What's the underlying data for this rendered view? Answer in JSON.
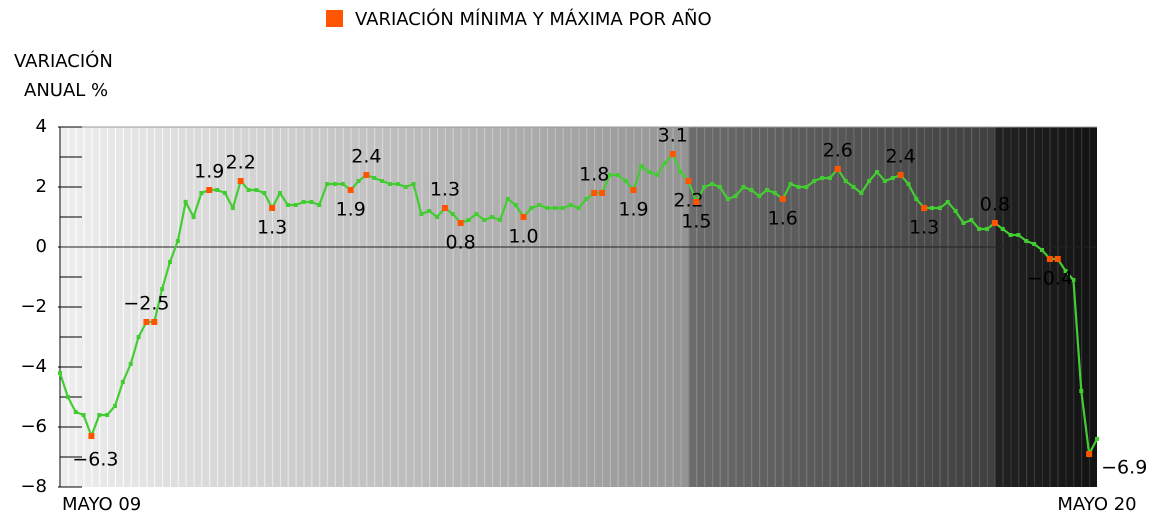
{
  "chart_data": {
    "type": "line",
    "y_label": [
      "VARIACIÓN",
      "ANUAL %"
    ],
    "categories": [
      "MAYO 09",
      null,
      null,
      null,
      null,
      null,
      null,
      null,
      null,
      null,
      null,
      null,
      null,
      null,
      null,
      null,
      null,
      null,
      null,
      null,
      null,
      null,
      null,
      null,
      null,
      null,
      null,
      null,
      null,
      null,
      null,
      null,
      null,
      null,
      null,
      null,
      null,
      null,
      null,
      null,
      null,
      null,
      null,
      null,
      null,
      null,
      null,
      null,
      null,
      null,
      null,
      null,
      null,
      null,
      null,
      null,
      null,
      null,
      null,
      null,
      null,
      null,
      null,
      null,
      null,
      null,
      null,
      null,
      null,
      null,
      null,
      null,
      null,
      null,
      null,
      null,
      null,
      null,
      null,
      null,
      null,
      null,
      null,
      null,
      null,
      null,
      null,
      null,
      null,
      null,
      null,
      null,
      null,
      null,
      null,
      null,
      null,
      null,
      null,
      null,
      null,
      null,
      null,
      null,
      null,
      null,
      null,
      null,
      null,
      null,
      null,
      null,
      null,
      null,
      null,
      null,
      null,
      null,
      null,
      null,
      null,
      null,
      null,
      null,
      null,
      null,
      null,
      null,
      null,
      null,
      null,
      null,
      "MAYO 20"
    ],
    "series": [
      {
        "color": "#44cc33",
        "values": [
          -4.2,
          -5.0,
          -5.5,
          -5.6,
          -6.3,
          -5.6,
          -5.6,
          -5.3,
          -4.5,
          -3.9,
          -3.0,
          -2.5,
          -2.5,
          -1.4,
          -0.5,
          0.2,
          1.5,
          1.0,
          1.8,
          1.9,
          1.9,
          1.8,
          1.3,
          2.2,
          1.9,
          1.9,
          1.8,
          1.3,
          1.8,
          1.4,
          1.4,
          1.5,
          1.5,
          1.4,
          2.1,
          2.1,
          2.1,
          1.9,
          2.2,
          2.4,
          2.3,
          2.2,
          2.1,
          2.1,
          2.0,
          2.1,
          1.1,
          1.2,
          1.0,
          1.3,
          1.1,
          0.8,
          0.9,
          1.1,
          0.9,
          1.0,
          0.9,
          1.6,
          1.4,
          1.0,
          1.3,
          1.4,
          1.3,
          1.3,
          1.3,
          1.4,
          1.3,
          1.6,
          1.8,
          1.8,
          2.4,
          2.4,
          2.2,
          1.9,
          2.7,
          2.5,
          2.4,
          2.8,
          3.1,
          2.5,
          2.2,
          1.5,
          2.0,
          2.1,
          2.0,
          1.6,
          1.7,
          2.0,
          1.9,
          1.7,
          1.9,
          1.8,
          1.6,
          2.1,
          2.0,
          2.0,
          2.2,
          2.3,
          2.3,
          2.6,
          2.2,
          2.0,
          1.8,
          2.2,
          2.5,
          2.2,
          2.3,
          2.4,
          2.1,
          1.6,
          1.3,
          1.3,
          1.3,
          1.5,
          1.2,
          0.8,
          0.9,
          0.6,
          0.6,
          0.8,
          0.6,
          0.4,
          0.4,
          0.2,
          0.1,
          -0.1,
          -0.4,
          -0.4,
          -0.8,
          -1.1,
          -4.8,
          -6.9,
          -6.4
        ]
      },
      {
        "name": "VARIACIÓN MÍNIMA Y MÁXIMA POR AÑO",
        "color": "#ff5500",
        "values": [
          null,
          null,
          null,
          null,
          -6.3,
          null,
          null,
          null,
          null,
          null,
          null,
          -2.5,
          -2.5,
          null,
          null,
          null,
          null,
          null,
          null,
          1.9,
          null,
          null,
          null,
          2.2,
          null,
          null,
          null,
          1.3,
          null,
          null,
          null,
          null,
          null,
          null,
          null,
          null,
          null,
          1.9,
          null,
          2.4,
          null,
          null,
          null,
          null,
          null,
          null,
          null,
          null,
          null,
          1.3,
          null,
          0.8,
          null,
          null,
          null,
          null,
          null,
          null,
          null,
          1.0,
          null,
          null,
          null,
          null,
          null,
          null,
          null,
          null,
          1.8,
          1.8,
          null,
          null,
          null,
          1.9,
          null,
          null,
          null,
          null,
          3.1,
          null,
          2.2,
          1.5,
          null,
          null,
          null,
          null,
          null,
          null,
          null,
          null,
          null,
          null,
          1.6,
          null,
          null,
          null,
          null,
          null,
          null,
          2.6,
          null,
          null,
          null,
          null,
          null,
          null,
          null,
          2.4,
          null,
          null,
          1.3,
          null,
          null,
          null,
          null,
          null,
          null,
          null,
          null,
          0.8,
          null,
          null,
          null,
          null,
          null,
          null,
          -0.4,
          -0.4,
          null,
          null,
          null,
          -6.9,
          null
        ],
        "value_labels": [
          null,
          null,
          null,
          null,
          "−6.3",
          null,
          null,
          null,
          null,
          null,
          null,
          "−2.5",
          null,
          null,
          null,
          null,
          null,
          null,
          null,
          "1.9",
          null,
          null,
          null,
          "2.2",
          null,
          null,
          null,
          "1.3",
          null,
          null,
          null,
          null,
          null,
          null,
          null,
          null,
          null,
          "1.9",
          null,
          "2.4",
          null,
          null,
          null,
          null,
          null,
          null,
          null,
          null,
          null,
          "1.3",
          null,
          "0.8",
          null,
          null,
          null,
          null,
          null,
          null,
          null,
          "1.0",
          null,
          null,
          null,
          null,
          null,
          null,
          null,
          null,
          "1.8",
          null,
          null,
          null,
          null,
          "1.9",
          null,
          null,
          null,
          null,
          "3.1",
          null,
          "2.2",
          "1.5",
          null,
          null,
          null,
          null,
          null,
          null,
          null,
          null,
          null,
          null,
          "1.6",
          null,
          null,
          null,
          null,
          null,
          null,
          "2.6",
          null,
          null,
          null,
          null,
          null,
          null,
          null,
          "2.4",
          null,
          null,
          "1.3",
          null,
          null,
          null,
          null,
          null,
          null,
          null,
          null,
          "0.8",
          null,
          null,
          null,
          null,
          null,
          null,
          "−0.4",
          null,
          null,
          null,
          null,
          "−6.9",
          null
        ]
      }
    ],
    "ylim": [
      -8,
      4
    ],
    "yticks": [
      4,
      2,
      0,
      {
        "value": -2,
        "label": "−2"
      },
      {
        "value": -4,
        "label": "−4"
      },
      {
        "value": -6,
        "label": "−6"
      },
      {
        "value": -8,
        "label": "−8"
      }
    ],
    "yticks_minor": [
      3,
      1,
      -1,
      -3,
      -5,
      -7
    ]
  }
}
